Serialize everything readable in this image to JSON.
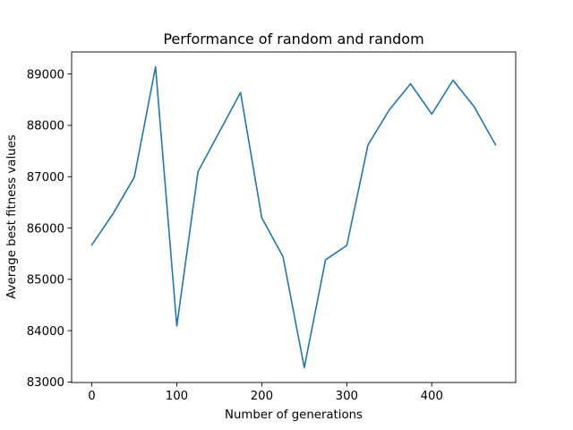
{
  "chart_data": {
    "type": "line",
    "title": "Performance of random and random",
    "xlabel": "Number of generations",
    "ylabel": "Average best fitness values",
    "x": [
      0,
      25,
      50,
      75,
      100,
      125,
      150,
      175,
      200,
      225,
      250,
      275,
      300,
      325,
      350,
      375,
      400,
      425,
      450,
      475
    ],
    "series": [
      {
        "values": [
          85670,
          86280,
          86990,
          89140,
          84090,
          87100,
          87870,
          88640,
          86200,
          85440,
          83280,
          85380,
          85660,
          87620,
          88300,
          88810,
          88220,
          88880,
          88360,
          87620
        ]
      }
    ],
    "xlim": [
      -23.75,
      498.75
    ],
    "ylim": [
      82990,
      89430
    ],
    "xticks": [
      0,
      100,
      200,
      300,
      400
    ],
    "yticks": [
      83000,
      84000,
      85000,
      86000,
      87000,
      88000,
      89000
    ],
    "grid": false,
    "colors": {
      "line": "#1f77b4",
      "axes": "#000000",
      "background": "#ffffff"
    }
  }
}
